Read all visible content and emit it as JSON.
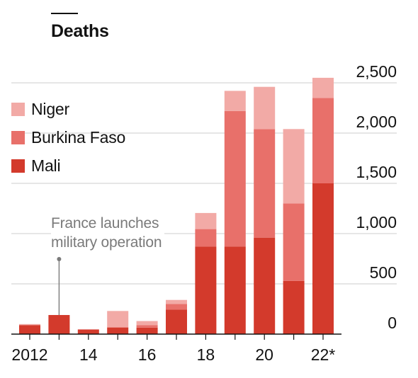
{
  "title": "Deaths",
  "legend": [
    {
      "label": "Niger",
      "color": "#f2aaa6"
    },
    {
      "label": "Burkina Faso",
      "color": "#e8706a"
    },
    {
      "label": "Mali",
      "color": "#d33a2c"
    }
  ],
  "annotation": {
    "line1": "France launches",
    "line2": "military operation",
    "year": 2013
  },
  "colors": {
    "niger": "#f2aaa6",
    "burkina_faso": "#e8706a",
    "mali": "#d33a2c",
    "grid": "#d8d8d8",
    "annotation": "#7a7a7a"
  },
  "chart_data": {
    "type": "bar",
    "stacked": true,
    "title": "Deaths",
    "categories": [
      "2012",
      "2013",
      "2014",
      "2015",
      "2016",
      "2017",
      "2018",
      "2019",
      "2020",
      "2021",
      "2022"
    ],
    "x_tick_labels": [
      "2012",
      "",
      "14",
      "",
      "16",
      "",
      "18",
      "",
      "20",
      "",
      "22*"
    ],
    "y_ticks": [
      0,
      500,
      1000,
      1500,
      2000,
      2500
    ],
    "y_tick_labels": [
      "0",
      "500",
      "1,000",
      "1,500",
      "2,000",
      "2,500"
    ],
    "ylim": [
      0,
      2600
    ],
    "y_axis_side": "right",
    "grid": true,
    "legend_position": "top-left",
    "series": [
      {
        "name": "Mali",
        "color": "#d33a2c",
        "values": [
          90,
          190,
          45,
          65,
          65,
          245,
          870,
          870,
          960,
          530,
          1500
        ]
      },
      {
        "name": "Burkina Faso",
        "color": "#e8706a",
        "values": [
          0,
          0,
          0,
          5,
          25,
          55,
          175,
          1350,
          1080,
          770,
          850
        ]
      },
      {
        "name": "Niger",
        "color": "#f2aaa6",
        "values": [
          10,
          0,
          5,
          160,
          40,
          40,
          160,
          200,
          420,
          740,
          200
        ]
      }
    ]
  }
}
